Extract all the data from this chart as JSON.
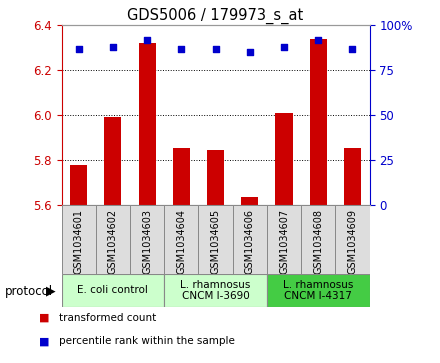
{
  "title": "GDS5006 / 179973_s_at",
  "samples": [
    "GSM1034601",
    "GSM1034602",
    "GSM1034603",
    "GSM1034604",
    "GSM1034605",
    "GSM1034606",
    "GSM1034607",
    "GSM1034608",
    "GSM1034609"
  ],
  "transformed_count": [
    5.78,
    5.99,
    6.32,
    5.855,
    5.845,
    5.635,
    6.01,
    6.34,
    5.855
  ],
  "percentile_rank": [
    87,
    88,
    92,
    87,
    87,
    85,
    88,
    92,
    87
  ],
  "ylim": [
    5.6,
    6.4
  ],
  "yticks": [
    5.6,
    5.8,
    6.0,
    6.2,
    6.4
  ],
  "right_yticks": [
    0,
    25,
    50,
    75,
    100
  ],
  "right_ylim": [
    0,
    100
  ],
  "bar_color": "#cc0000",
  "dot_color": "#0000cc",
  "left_tick_color": "#cc0000",
  "right_tick_color": "#0000cc",
  "group_colors": [
    "#ccffcc",
    "#ccffcc",
    "#44cc44"
  ],
  "group_labels": [
    "E. coli control",
    "L. rhamnosus\nCNCM I-3690",
    "L. rhamnosus\nCNCM I-4317"
  ],
  "group_ranges": [
    [
      0,
      3
    ],
    [
      3,
      6
    ],
    [
      6,
      9
    ]
  ],
  "legend_items": [
    {
      "label": "transformed count",
      "color": "#cc0000"
    },
    {
      "label": "percentile rank within the sample",
      "color": "#0000cc"
    }
  ],
  "protocol_label": "protocol"
}
